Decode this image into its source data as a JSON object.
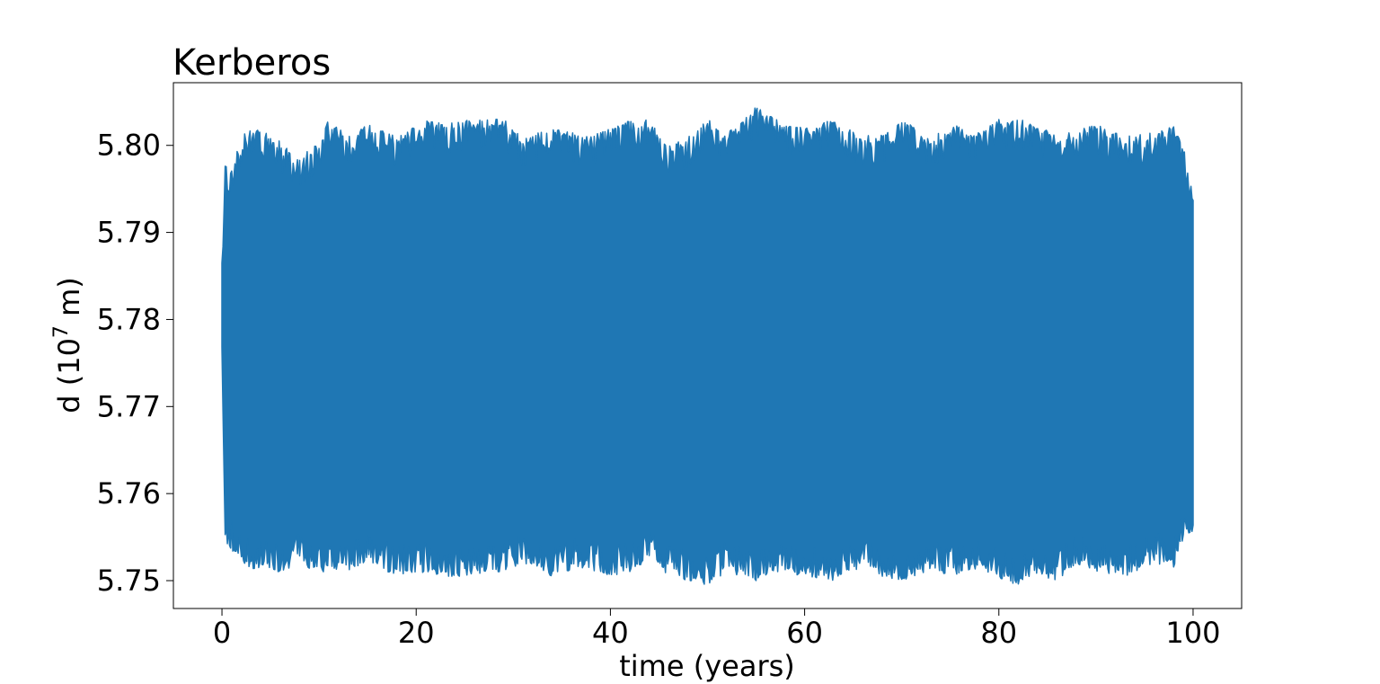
{
  "chart_data": {
    "type": "line",
    "title": "Kerberos",
    "xlabel": "time (years)",
    "ylabel": {
      "prefix": "d (10",
      "superscript": "7",
      "suffix": " m)"
    },
    "xlim": [
      -5,
      105
    ],
    "ylim": [
      5.7468,
      5.8072
    ],
    "xticks": [
      0,
      20,
      40,
      60,
      80,
      100
    ],
    "xtick_labels": [
      "0",
      "20",
      "40",
      "60",
      "80",
      "100"
    ],
    "yticks": [
      5.75,
      5.76,
      5.77,
      5.78,
      5.79,
      5.8
    ],
    "ytick_labels": [
      "5.75",
      "5.76",
      "5.77",
      "5.78",
      "5.79",
      "5.80"
    ],
    "grid": false,
    "series": [
      {
        "color": "#1f77b4",
        "x_range": [
          0,
          100
        ],
        "envelope": {
          "x": [
            0,
            0.3,
            1,
            2,
            4,
            6,
            8,
            10,
            11,
            13,
            15,
            18,
            21,
            23,
            26,
            29,
            31,
            34,
            37,
            40,
            42,
            44,
            46,
            48,
            50,
            52,
            55,
            57,
            60,
            63,
            66,
            68,
            70,
            73,
            76,
            78,
            80,
            82,
            84,
            86,
            88,
            90,
            93,
            96,
            98,
            99,
            100
          ],
          "upper": [
            5.7865,
            5.7985,
            5.7975,
            5.8015,
            5.802,
            5.8005,
            5.7985,
            5.8005,
            5.803,
            5.801,
            5.8025,
            5.801,
            5.803,
            5.8025,
            5.803,
            5.803,
            5.801,
            5.8025,
            5.801,
            5.802,
            5.803,
            5.803,
            5.8,
            5.801,
            5.803,
            5.8015,
            5.8045,
            5.803,
            5.802,
            5.803,
            5.801,
            5.8015,
            5.803,
            5.801,
            5.8025,
            5.8015,
            5.803,
            5.803,
            5.8025,
            5.801,
            5.802,
            5.8025,
            5.801,
            5.8015,
            5.8025,
            5.8,
            5.795
          ],
          "lower": [
            5.7765,
            5.754,
            5.7535,
            5.752,
            5.751,
            5.751,
            5.752,
            5.7505,
            5.7515,
            5.751,
            5.752,
            5.7505,
            5.751,
            5.7505,
            5.7505,
            5.751,
            5.752,
            5.7505,
            5.7515,
            5.7505,
            5.751,
            5.7525,
            5.7505,
            5.75,
            5.7495,
            5.751,
            5.75,
            5.751,
            5.7505,
            5.75,
            5.7515,
            5.7505,
            5.75,
            5.751,
            5.7505,
            5.7515,
            5.75,
            5.7495,
            5.7505,
            5.75,
            5.752,
            5.751,
            5.7505,
            5.752,
            5.7515,
            5.7545,
            5.7555
          ]
        }
      }
    ]
  }
}
